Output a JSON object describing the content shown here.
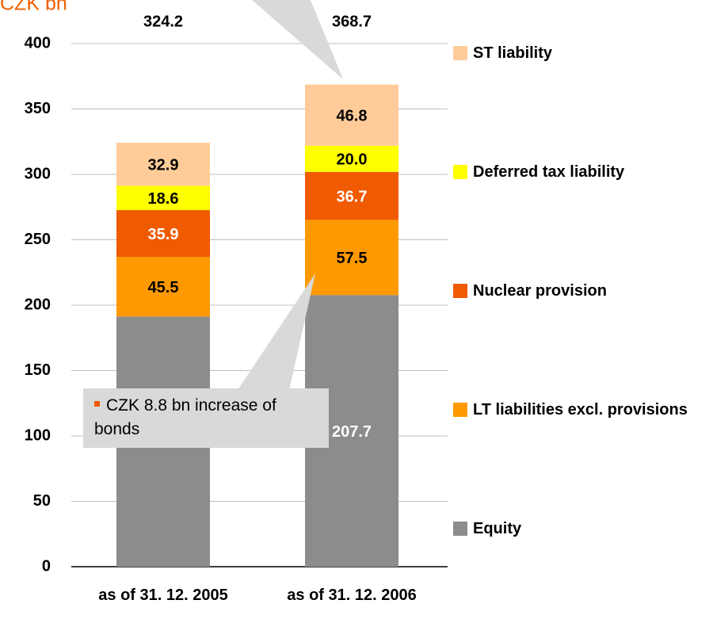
{
  "chart_data": {
    "type": "stacked_bar",
    "title": "CZK bn",
    "categories": [
      "as of 31. 12. 2005",
      "as of 31. 12. 2006"
    ],
    "totals": [
      324.2,
      368.7
    ],
    "series": [
      {
        "name": "Equity",
        "color": "#8c8c8c",
        "label_color": "#ffffff",
        "values": [
          191.3,
          207.7
        ]
      },
      {
        "name": "LT liabilities excl. provisions",
        "color": "#ff9900",
        "label_color": "#000000",
        "values": [
          45.5,
          57.5
        ]
      },
      {
        "name": "Nuclear provision",
        "color": "#f05a00",
        "label_color": "#ffffff",
        "values": [
          35.9,
          36.7
        ]
      },
      {
        "name": "Deferred tax liability",
        "color": "#ffff00",
        "label_color": "#000000",
        "values": [
          18.6,
          20.0
        ],
        "value_labels": [
          "18.6",
          "20.0"
        ]
      },
      {
        "name": "ST liability",
        "color": "#ffcc99",
        "label_color": "#000000",
        "values": [
          32.9,
          46.8
        ]
      }
    ],
    "annotation": "CZK 8.8 bn increase of bonds",
    "ylim": [
      0,
      400
    ],
    "yticks": [
      0,
      50,
      100,
      150,
      200,
      250,
      300,
      350,
      400
    ],
    "grid": true
  }
}
